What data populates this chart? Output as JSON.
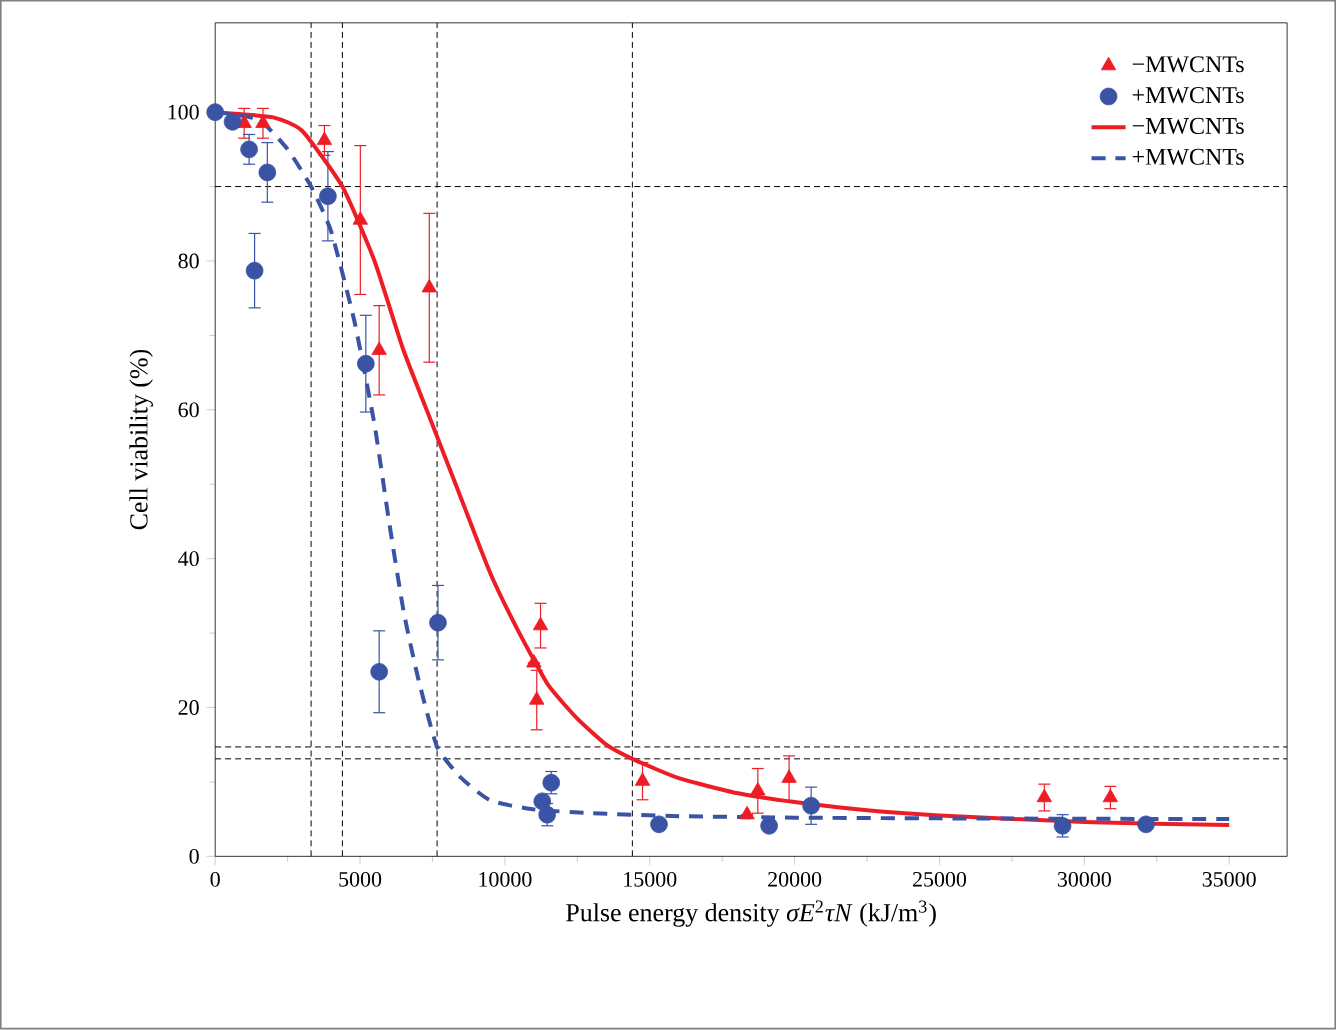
{
  "chart_data": {
    "type": "scatter",
    "xlabel": "Pulse energy density *σE*$^{2}$*τN* (kJ/m$^{3}$)",
    "ylabel": "Cell viability (%)",
    "xlim": [
      0,
      37000
    ],
    "ylim": [
      0,
      112
    ],
    "xticks": [
      0,
      5000,
      10000,
      15000,
      20000,
      25000,
      30000,
      35000
    ],
    "yticks": [
      0,
      20,
      40,
      60,
      80,
      100
    ],
    "legend": "top right",
    "grid": false,
    "series": [
      {
        "name": "−MWCNTs",
        "marker": "triangle",
        "color": "#ee1c25",
        "x": [
          1000,
          1650,
          3770,
          5010,
          5660,
          7390,
          11230,
          11000,
          11100,
          14750,
          18360,
          18730,
          19810,
          28620,
          30900
        ],
        "values": [
          98.5,
          98.5,
          96.2,
          85.5,
          68,
          76.4,
          31,
          26,
          21,
          10.1,
          5.6,
          8.8,
          10.5,
          7.9,
          7.9
        ],
        "errors": [
          2,
          2,
          2,
          10,
          6,
          10,
          3,
          null,
          4,
          2.5,
          null,
          3,
          3,
          1.8,
          1.5
        ]
      },
      {
        "name": "+MWCNTs",
        "marker": "circle",
        "color": "#3a53a4",
        "x": [
          0,
          600,
          1170,
          1800,
          1360,
          3890,
          5200,
          5660,
          7690,
          11600,
          11290,
          11460,
          15320,
          19120,
          20570,
          29250,
          32130
        ],
        "values": [
          100,
          98.7,
          95,
          91.9,
          78.7,
          88.7,
          66.2,
          24.8,
          31.4,
          9.9,
          7.4,
          5.6,
          4.3,
          4.1,
          6.8,
          4.1,
          4.3
        ],
        "errors": [
          null,
          null,
          2,
          4,
          5,
          6,
          6.5,
          5.5,
          5,
          1.5,
          null,
          1.5,
          null,
          null,
          2.5,
          1.5,
          null
        ]
      },
      {
        "name": "−MWCNTs",
        "type": "line",
        "line_style": "solid",
        "color": "#ee1c25",
        "x": [
          0,
          2000,
          3000,
          4390,
          5500,
          6500,
          7500,
          8300,
          9500,
          10500,
          11500,
          12500,
          13500,
          14400,
          16000,
          18000,
          20000,
          22500,
          25000,
          30000,
          35000
        ],
        "values": [
          100,
          99.3,
          97.5,
          90,
          80,
          68,
          58,
          50,
          38,
          30,
          23,
          18.5,
          15,
          13.1,
          10.5,
          8.5,
          7.3,
          6.2,
          5.5,
          4.6,
          4.2
        ]
      },
      {
        "name": "+MWCNTs",
        "type": "line",
        "line_style": "dashed",
        "color": "#3a53a4",
        "x": [
          0,
          1500,
          2500,
          3310,
          4000,
          4800,
          5500,
          6000,
          6500,
          7000,
          7660,
          8500,
          9500,
          11000,
          13000,
          16000,
          20000,
          25000,
          35000
        ],
        "values": [
          100,
          99,
          95,
          90,
          84,
          72,
          58,
          45,
          33,
          24,
          14.7,
          10.5,
          7.5,
          6.3,
          5.8,
          5.4,
          5.2,
          5.1,
          5
        ]
      }
    ],
    "ref_lines": [
      {
        "axis": "x",
        "value": 3310,
        "line_style": "dashed",
        "color": "#000000"
      },
      {
        "axis": "x",
        "value": 4390,
        "line_style": "dashed",
        "color": "#000000"
      },
      {
        "axis": "x",
        "value": 7660,
        "line_style": "dashed",
        "color": "#000000"
      },
      {
        "axis": "x",
        "value": 14400,
        "line_style": "dashed",
        "color": "#000000"
      },
      {
        "axis": "y",
        "value": 90,
        "line_style": "dashed",
        "color": "#000000"
      },
      {
        "axis": "y",
        "value": 14.7,
        "line_style": "dashed",
        "color": "#000000"
      },
      {
        "axis": "y",
        "value": 13.1,
        "line_style": "dashed",
        "color": "#000000"
      }
    ]
  }
}
